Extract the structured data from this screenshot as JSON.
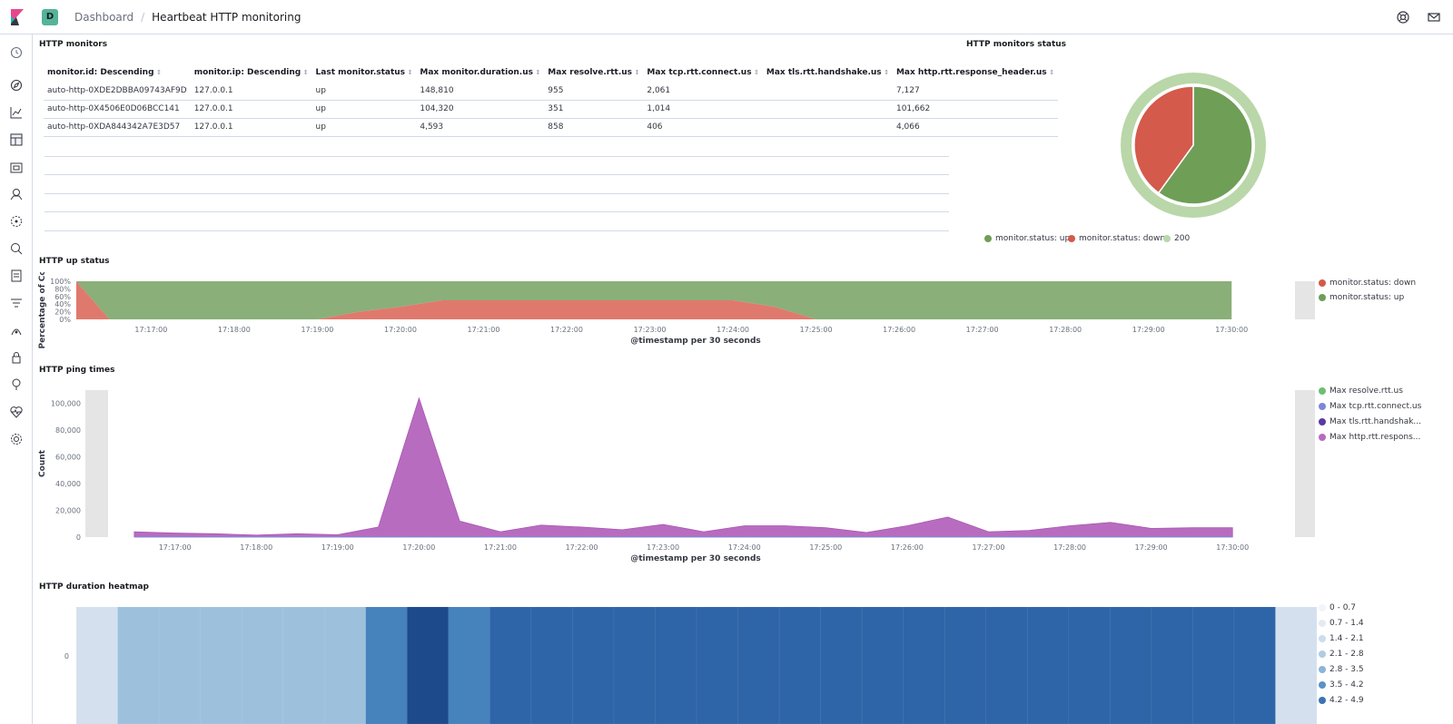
{
  "header": {
    "space_initial": "D",
    "breadcrumb_root": "Dashboard",
    "breadcrumb_current": "Heartbeat HTTP monitoring"
  },
  "nav_icons": [
    "clock-icon",
    "compass-icon",
    "visualize-icon",
    "dashboard-icon",
    "canvas-icon",
    "maps-icon",
    "ml-icon",
    "metrics-icon",
    "logs-icon",
    "apm-icon",
    "uptime-icon",
    "siem-icon",
    "dev-tools-icon",
    "monitoring-icon",
    "management-icon"
  ],
  "monitors_table": {
    "title": "HTTP monitors",
    "columns": [
      "monitor.id: Descending",
      "monitor.ip: Descending",
      "Last monitor.status",
      "Max monitor.duration.us",
      "Max resolve.rtt.us",
      "Max tcp.rtt.connect.us",
      "Max tls.rtt.handshake.us",
      "Max http.rtt.response_header.us"
    ],
    "rows": [
      [
        "auto-http-0XDE2DBBA09743AF9D",
        "127.0.0.1",
        "up",
        "148,810",
        "955",
        "2,061",
        "",
        "7,127"
      ],
      [
        "auto-http-0X4506E0D06BCC141",
        "127.0.0.1",
        "up",
        "104,320",
        "351",
        "1,014",
        "",
        "101,662"
      ],
      [
        "auto-http-0XDA844342A7E3D57",
        "127.0.0.1",
        "up",
        "4,593",
        "858",
        "406",
        "",
        "4,066"
      ]
    ]
  },
  "status_pie": {
    "title": "HTTP monitors status",
    "chart_data": {
      "type": "pie",
      "inner_ring": [
        {
          "name": "monitor.status: up",
          "value": 0.6,
          "color": "#6f9e57"
        },
        {
          "name": "monitor.status: down",
          "value": 0.4,
          "color": "#d45a4b"
        }
      ],
      "outer_ring": [
        {
          "name": "200",
          "value": 1.0,
          "color": "#b9d7a9"
        }
      ]
    },
    "legend": [
      {
        "label": "monitor.status: up",
        "color": "#6f9e57"
      },
      {
        "label": "monitor.status: down",
        "color": "#d45a4b"
      },
      {
        "label": "200",
        "color": "#b9d7a9"
      }
    ]
  },
  "up_status": {
    "title": "HTTP up status",
    "chart_data": {
      "type": "area",
      "ylabel": "Percentage of Co",
      "xlabel": "@timestamp per 30 seconds",
      "yticks": [
        "100%",
        "80%",
        "60%",
        "40%",
        "20%",
        "0%"
      ],
      "xticks": [
        "17:17:00",
        "17:18:00",
        "17:19:00",
        "17:20:00",
        "17:21:00",
        "17:22:00",
        "17:23:00",
        "17:24:00",
        "17:25:00",
        "17:26:00",
        "17:27:00",
        "17:28:00",
        "17:29:00",
        "17:30:00"
      ],
      "x_range_minutes": [
        16.1,
        30.5
      ],
      "x": [
        16.1,
        16.5,
        19.0,
        19.5,
        20.0,
        20.5,
        21.0,
        21.5,
        22.0,
        22.5,
        23.0,
        23.5,
        24.0,
        24.5,
        25.0,
        30.0
      ],
      "series": [
        {
          "name": "monitor.status: down",
          "color": "#e0796d",
          "values": [
            100,
            0,
            0,
            20,
            33,
            50,
            50,
            50,
            50,
            50,
            50,
            50,
            50,
            33,
            0,
            0
          ]
        },
        {
          "name": "monitor.status: up",
          "color": "#8aaf79",
          "values": [
            0,
            100,
            100,
            80,
            67,
            50,
            50,
            50,
            50,
            50,
            50,
            50,
            50,
            67,
            100,
            100
          ]
        }
      ]
    },
    "legend": [
      {
        "label": "monitor.status: down",
        "color": "#d45a4b"
      },
      {
        "label": "monitor.status: up",
        "color": "#6f9e57"
      }
    ]
  },
  "ping_times": {
    "title": "HTTP ping times",
    "chart_data": {
      "type": "area",
      "ylabel": "Count",
      "xlabel": "@timestamp per 30 seconds",
      "yticks": [
        "100,000",
        "80,000",
        "60,000",
        "40,000",
        "20,000",
        "0"
      ],
      "ylim": [
        0,
        110000
      ],
      "xticks": [
        "17:17:00",
        "17:18:00",
        "17:19:00",
        "17:20:00",
        "17:21:00",
        "17:22:00",
        "17:23:00",
        "17:24:00",
        "17:25:00",
        "17:26:00",
        "17:27:00",
        "17:28:00",
        "17:29:00",
        "17:30:00"
      ],
      "x_range_minutes": [
        16.2,
        30.5
      ],
      "x": [
        16.5,
        17.0,
        17.5,
        18.0,
        18.5,
        19.0,
        19.5,
        20.0,
        20.5,
        21.0,
        21.5,
        22.0,
        22.5,
        23.0,
        23.5,
        24.0,
        24.5,
        25.0,
        25.5,
        26.0,
        26.5,
        27.0,
        27.5,
        28.0,
        28.5,
        29.0,
        29.5,
        30.0
      ],
      "series": [
        {
          "name": "Max http.rtt.response_header.us",
          "color": "#b86cc0",
          "values": [
            4000,
            3000,
            2500,
            1500,
            2500,
            1800,
            7500,
            104000,
            12000,
            4000,
            9000,
            7500,
            5500,
            9500,
            4000,
            8500,
            8500,
            7000,
            3500,
            8500,
            15000,
            4000,
            5000,
            8500,
            11000,
            6500,
            7000,
            7000
          ]
        }
      ]
    },
    "legend": [
      {
        "label": "Max resolve.rtt.us",
        "color": "#6dbf73"
      },
      {
        "label": "Max tcp.rtt.connect.us",
        "color": "#7d87d6"
      },
      {
        "label": "Max tls.rtt.handshak...",
        "color": "#5b3aa0"
      },
      {
        "label": "Max http.rtt.respons...",
        "color": "#b86cc0"
      }
    ]
  },
  "heatmap": {
    "title": "HTTP duration heatmap",
    "chart_data": {
      "type": "heatmap",
      "yticks": [
        "0"
      ],
      "cells": [
        0.5,
        2.5,
        2.5,
        2.5,
        2.5,
        2.5,
        2.5,
        4.0,
        5.0,
        4.0,
        4.5,
        4.5,
        4.5,
        4.5,
        4.5,
        4.5,
        4.5,
        4.5,
        4.5,
        4.5,
        4.5,
        4.5,
        4.5,
        4.5,
        4.5,
        4.5,
        4.5,
        4.5,
        4.5,
        0.5
      ],
      "colors": {
        "0-0.7": "#d5e0ef",
        "2.1-2.8": "#9dc1dd",
        "3.5-4.2": "#4682bb",
        "4.2-4.9": "#2e65a8",
        "4.9+": "#1d4a8a"
      }
    },
    "legend": [
      {
        "label": "0 - 0.7",
        "color": "#f2f4f8"
      },
      {
        "label": "0.7 - 1.4",
        "color": "#e3eaf3"
      },
      {
        "label": "1.4 - 2.1",
        "color": "#cbdcee"
      },
      {
        "label": "2.1 - 2.8",
        "color": "#b0cbe5"
      },
      {
        "label": "2.8 - 3.5",
        "color": "#8bb5da"
      },
      {
        "label": "3.5 - 4.2",
        "color": "#5b92c8"
      },
      {
        "label": "4.2 - 4.9",
        "color": "#3a73b2"
      }
    ]
  }
}
